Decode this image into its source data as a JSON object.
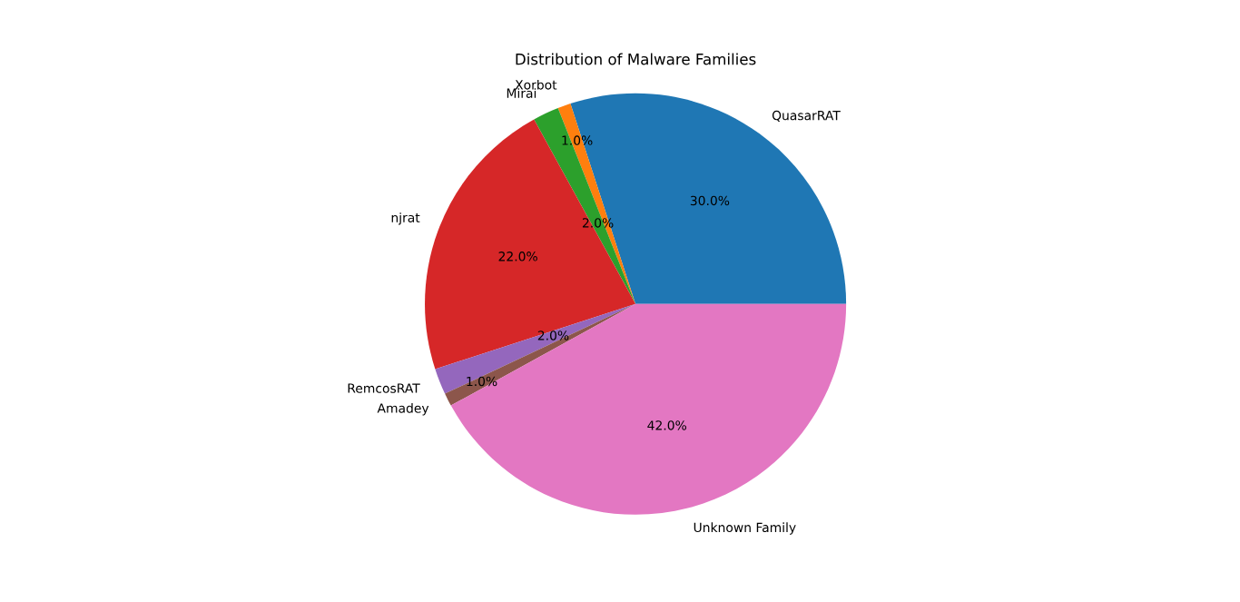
{
  "chart_data": {
    "type": "pie",
    "title": "Distribution of Malware Families",
    "categories": [
      "QuasarRAT",
      "Xorbot",
      "Mirai",
      "njrat",
      "RemcosRAT",
      "Amadey",
      "Unknown Family"
    ],
    "values": [
      30,
      1,
      2,
      22,
      2,
      1,
      42
    ],
    "value_labels": [
      "30.0%",
      "1.0%",
      "2.0%",
      "22.0%",
      "2.0%",
      "1.0%",
      "42.0%"
    ],
    "colors": [
      "#1f77b4",
      "#ff7f0e",
      "#2ca02c",
      "#d62728",
      "#9467bd",
      "#8c564b",
      "#e377c2"
    ]
  }
}
